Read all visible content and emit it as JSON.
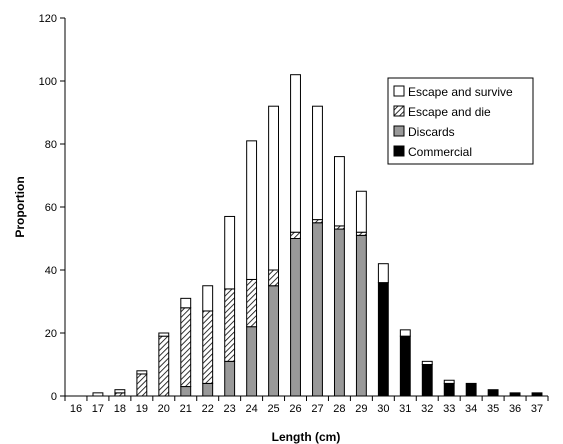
{
  "chart_data": {
    "type": "bar",
    "stacked": true,
    "title": "",
    "xlabel": "Length (cm)",
    "ylabel": "Proportion",
    "ylim": [
      0,
      120
    ],
    "yticks": [
      0,
      20,
      40,
      60,
      80,
      100,
      120
    ],
    "grid": false,
    "legend_position": "right",
    "categories": [
      "16",
      "17",
      "18",
      "19",
      "20",
      "21",
      "22",
      "23",
      "24",
      "25",
      "26",
      "27",
      "28",
      "29",
      "30",
      "31",
      "32",
      "33",
      "34",
      "35",
      "36",
      "37"
    ],
    "series": [
      {
        "name": "Commercial",
        "pattern": "solid-black",
        "values": [
          0,
          0,
          0,
          0,
          0,
          0,
          0,
          0,
          0,
          0,
          0,
          0,
          0,
          0,
          36,
          19,
          10,
          4,
          4,
          2,
          1,
          1
        ]
      },
      {
        "name": "Discards",
        "pattern": "solid-gray",
        "values": [
          0,
          0,
          0,
          0,
          0,
          3,
          4,
          11,
          22,
          35,
          50,
          55,
          53,
          51,
          0,
          0,
          0,
          0,
          0,
          0,
          0,
          0
        ]
      },
      {
        "name": "Escape and die",
        "pattern": "hatched",
        "values": [
          0,
          0,
          1,
          7,
          19,
          25,
          23,
          23,
          15,
          5,
          2,
          1,
          1,
          1,
          0,
          0,
          0,
          0,
          0,
          0,
          0,
          0
        ]
      },
      {
        "name": "Escape and survive",
        "pattern": "white",
        "values": [
          0,
          1,
          1,
          1,
          1,
          3,
          8,
          23,
          44,
          52,
          50,
          36,
          22,
          13,
          6,
          2,
          1,
          1,
          0,
          0,
          0,
          0
        ]
      }
    ],
    "legend_order": [
      "Escape and survive",
      "Escape and die",
      "Discards",
      "Commercial"
    ]
  }
}
